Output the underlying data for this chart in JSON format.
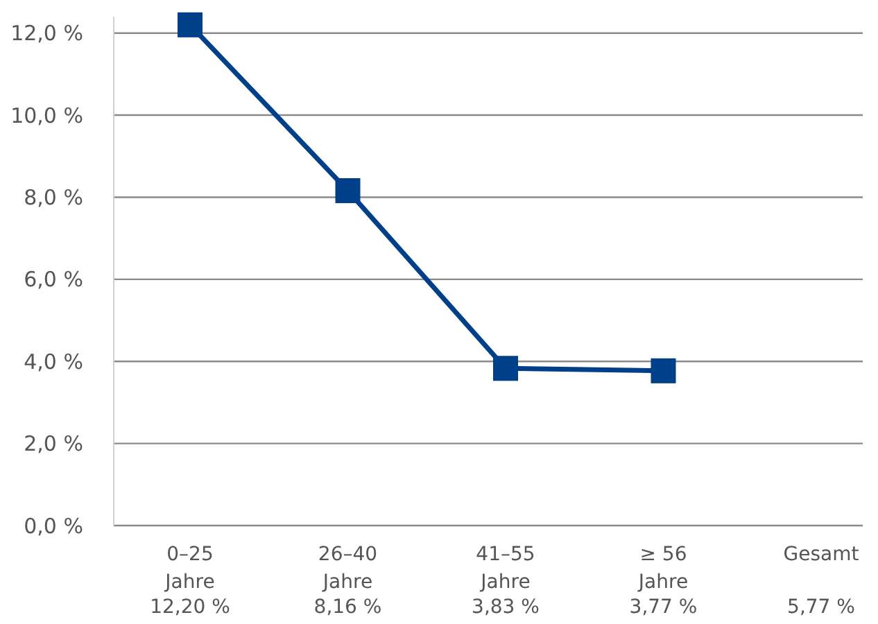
{
  "chart_data": {
    "type": "line",
    "categories": [
      "0–25 Jahre",
      "26–40 Jahre",
      "41–55 Jahre",
      "≥ 56 Jahre",
      "Gesamt"
    ],
    "series": [
      {
        "color": "#003f8a",
        "values": [
          12.2,
          8.16,
          3.83,
          3.77,
          null
        ]
      }
    ],
    "value_labels": [
      "12,20 %",
      "8,16 %",
      "3,83 %",
      "3,77 %",
      "5,77 %"
    ],
    "ylim": [
      0,
      12.4
    ],
    "yticks": [
      {
        "value": 0,
        "label": "0,0 %"
      },
      {
        "value": 2,
        "label": "2,0 %"
      },
      {
        "value": 4,
        "label": "4,0 %"
      },
      {
        "value": 6,
        "label": "6,0 %"
      },
      {
        "value": 8,
        "label": "8,0 %"
      },
      {
        "value": 10,
        "label": "10,0 %"
      },
      {
        "value": 12,
        "label": "12,0 %"
      }
    ],
    "grid": "y",
    "marker": "square",
    "line_style": "solid"
  }
}
